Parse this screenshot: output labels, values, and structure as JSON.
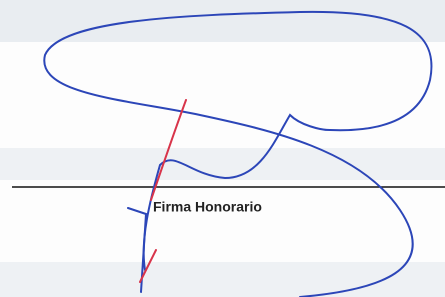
{
  "signature_line": {
    "label": "Firma Honorario"
  }
}
